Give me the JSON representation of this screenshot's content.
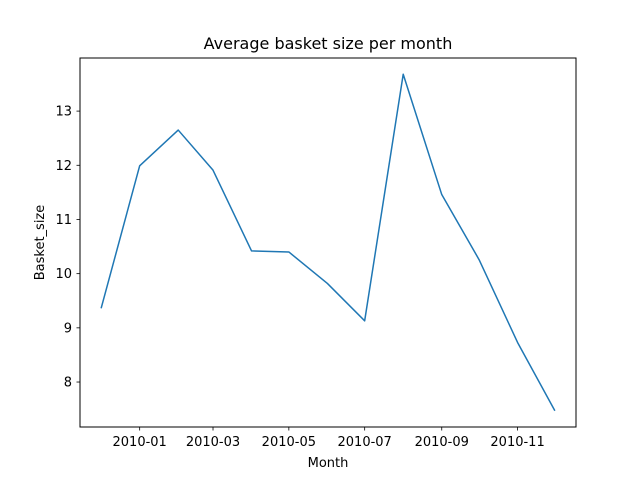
{
  "chart_data": {
    "type": "line",
    "title": "Average basket size per month",
    "xlabel": "Month",
    "ylabel": "Basket_size",
    "x": [
      "2009-12",
      "2010-01",
      "2010-02",
      "2010-03",
      "2010-04",
      "2010-05",
      "2010-06",
      "2010-07",
      "2010-08",
      "2010-09",
      "2010-10",
      "2010-11",
      "2010-12"
    ],
    "series": [
      {
        "values": [
          9.36,
          11.99,
          12.65,
          11.91,
          10.42,
          10.4,
          9.82,
          9.13,
          13.68,
          11.46,
          10.26,
          8.73,
          7.47
        ],
        "color": "#1f77b4"
      }
    ],
    "x_ticks": [
      "2010-01",
      "2010-03",
      "2010-05",
      "2010-07",
      "2010-09",
      "2010-11"
    ],
    "y_ticks": [
      8,
      9,
      10,
      11,
      12,
      13
    ],
    "ylim": [
      7.17,
      13.98
    ],
    "xlim": [
      "2009-11-14",
      "2010-12-18"
    ],
    "grid": false,
    "legend": "none"
  }
}
